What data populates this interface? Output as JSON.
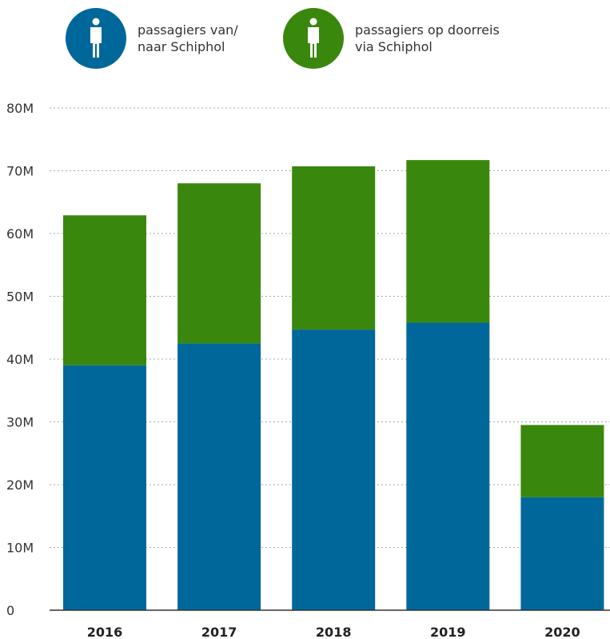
{
  "legend": [
    {
      "label_line1": "passagiers van/",
      "label_line2": "naar Schiphol",
      "color": "#00679b",
      "icon": "person-icon"
    },
    {
      "label_line1": "passagiers op doorreis",
      "label_line2": "via Schiphol",
      "color": "#3a870e",
      "icon": "person-icon"
    }
  ],
  "chart_data": {
    "type": "bar",
    "stacked": true,
    "categories": [
      "2016",
      "2017",
      "2018",
      "2019",
      "2020"
    ],
    "series": [
      {
        "name": "passagiers van/ naar Schiphol",
        "color": "#00679b",
        "values": [
          39.0,
          42.5,
          44.7,
          45.8,
          18.0
        ]
      },
      {
        "name": "passagiers op doorreis via Schiphol",
        "color": "#3a870e",
        "values": [
          23.9,
          25.5,
          26.0,
          25.9,
          11.5
        ]
      }
    ],
    "yticks": [
      {
        "value": 0,
        "label": "0"
      },
      {
        "value": 10,
        "label": "10M"
      },
      {
        "value": 20,
        "label": "20M"
      },
      {
        "value": 30,
        "label": "30M"
      },
      {
        "value": 40,
        "label": "40M"
      },
      {
        "value": 50,
        "label": "50M"
      },
      {
        "value": 60,
        "label": "60M"
      },
      {
        "value": 70,
        "label": "70M"
      },
      {
        "value": 80,
        "label": "80M"
      }
    ],
    "ylim": [
      0,
      80
    ],
    "grid": true,
    "legend_position": "top-left"
  }
}
